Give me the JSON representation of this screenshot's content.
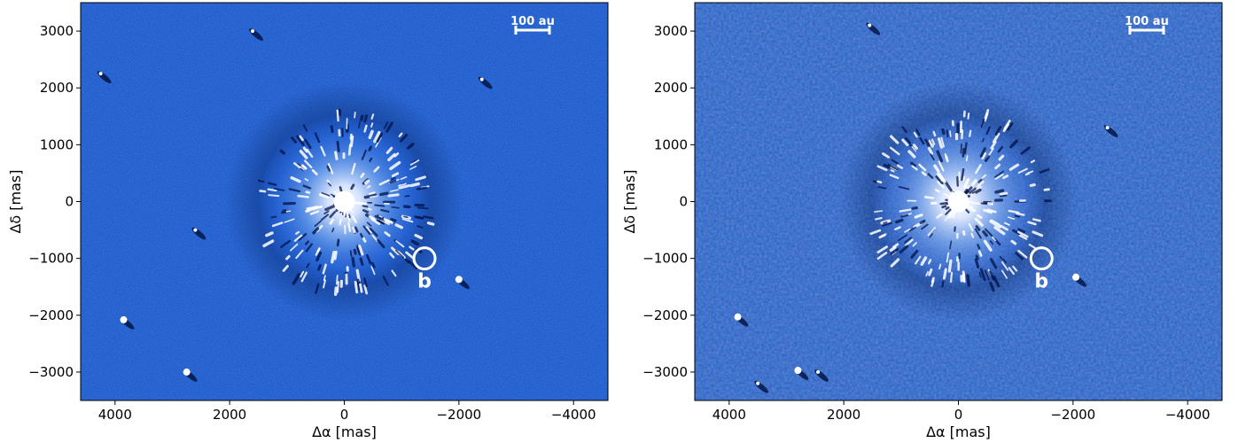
{
  "chart_data": [
    {
      "type": "image",
      "xlabel": "Δα [mas]",
      "ylabel": "Δδ [mas]",
      "xlim": [
        4600,
        -4600
      ],
      "ylim": [
        -3500,
        3500
      ],
      "xticks": [
        4000,
        2000,
        0,
        -2000,
        -4000
      ],
      "xtick_labels": [
        "4000",
        "2000",
        "0",
        "−2000",
        "−4000"
      ],
      "yticks": [
        3000,
        2000,
        1000,
        0,
        -1000,
        -2000,
        -3000
      ],
      "ytick_labels": [
        "3000",
        "2000",
        "1000",
        "0",
        "−1000",
        "−2000",
        "−3000"
      ],
      "scalebar_label": "100 au",
      "annotations": [
        {
          "label": "b",
          "x": -1400,
          "y": -1000
        }
      ],
      "background_color": "#1155d8",
      "sources": [
        {
          "x": 3850,
          "y": -2080
        },
        {
          "x": 2750,
          "y": -3000
        },
        {
          "x": -2000,
          "y": -1370
        },
        {
          "x": 1600,
          "y": 3000
        },
        {
          "x": -2400,
          "y": 2150
        },
        {
          "x": 4250,
          "y": 2250
        },
        {
          "x": 2600,
          "y": -500
        }
      ]
    },
    {
      "type": "image",
      "xlabel": "Δα [mas]",
      "ylabel": "Δδ [mas]",
      "xlim": [
        4600,
        -4600
      ],
      "ylim": [
        -3500,
        3500
      ],
      "xticks": [
        4000,
        2000,
        0,
        -2000,
        -4000
      ],
      "xtick_labels": [
        "4000",
        "2000",
        "0",
        "−2000",
        "−4000"
      ],
      "yticks": [
        3000,
        2000,
        1000,
        0,
        -1000,
        -2000,
        -3000
      ],
      "ytick_labels": [
        "3000",
        "2000",
        "1000",
        "0",
        "−1000",
        "−2000",
        "−3000"
      ],
      "scalebar_label": "100 au",
      "annotations": [
        {
          "label": "b",
          "x": -1450,
          "y": -1000
        }
      ],
      "background_color": "#2a63d0",
      "sources": [
        {
          "x": 3850,
          "y": -2030
        },
        {
          "x": 2800,
          "y": -2970
        },
        {
          "x": -2050,
          "y": -1330
        },
        {
          "x": 1550,
          "y": 3100
        },
        {
          "x": -2600,
          "y": 1300
        },
        {
          "x": 2450,
          "y": -3000
        },
        {
          "x": 3500,
          "y": -3200
        }
      ]
    }
  ]
}
